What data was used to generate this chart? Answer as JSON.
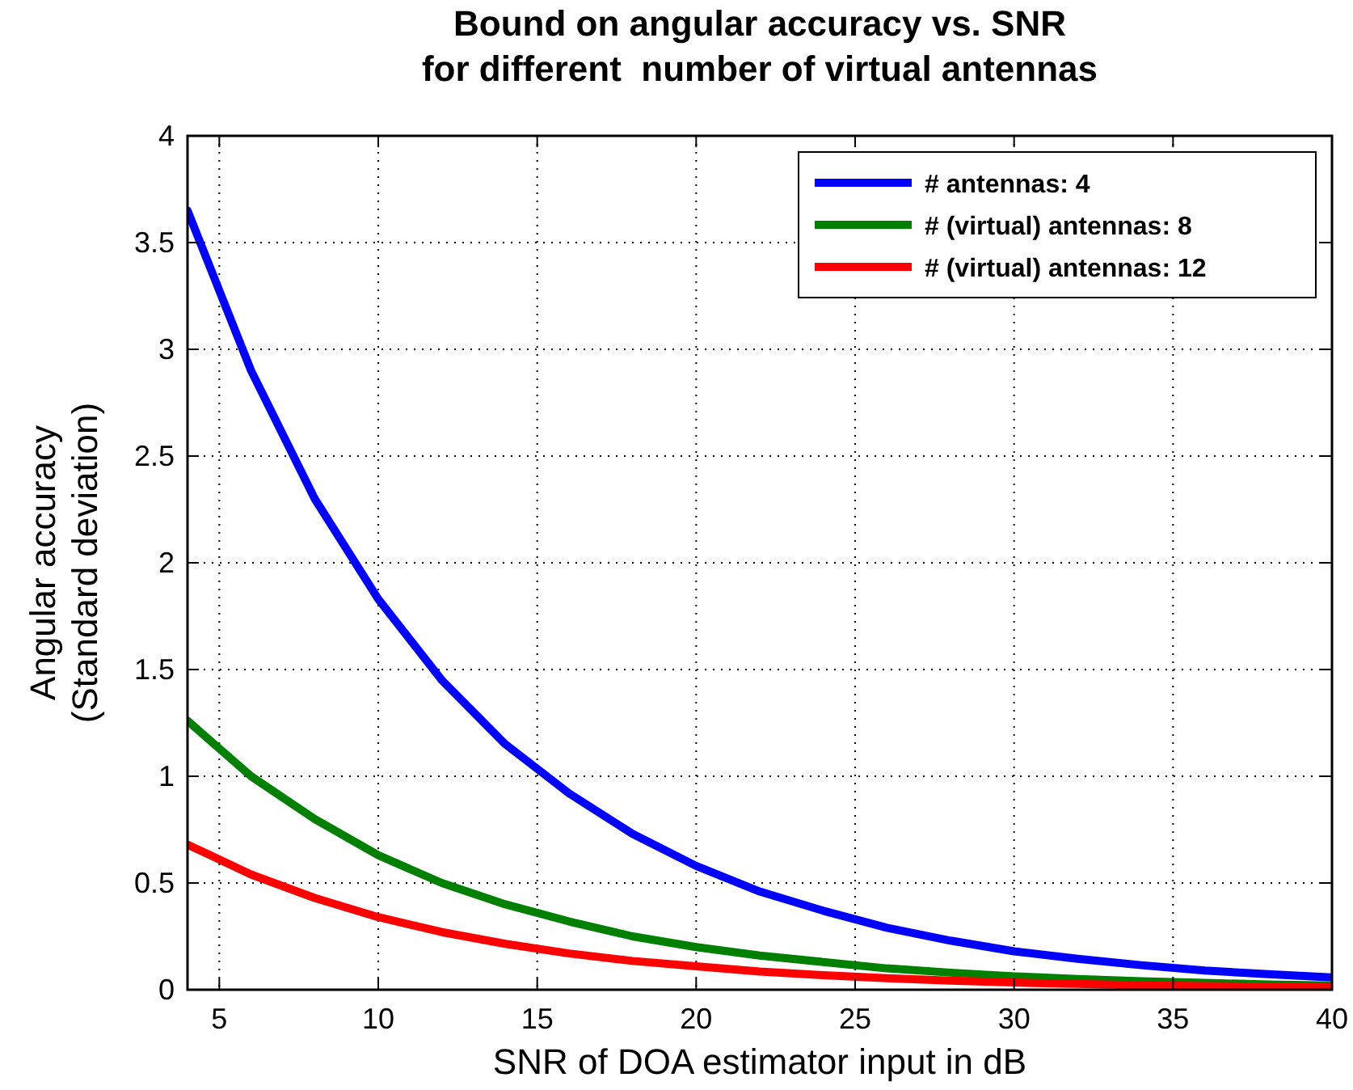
{
  "chart_data": {
    "type": "line",
    "title": "Bound on angular accuracy vs. SNR\nfor different  number of virtual antennas",
    "xlabel": "SNR of DOA estimator input in dB",
    "ylabel": "Angular accuracy\n(Standard deviation)",
    "x": [
      4,
      6,
      8,
      10,
      12,
      14,
      16,
      18,
      20,
      22,
      24,
      26,
      28,
      30,
      32,
      34,
      36,
      38,
      40
    ],
    "series": [
      {
        "name": "# antennas: 4",
        "color": "#0000ff",
        "values": [
          3.65,
          2.9,
          2.3,
          1.83,
          1.45,
          1.15,
          0.92,
          0.73,
          0.58,
          0.46,
          0.37,
          0.29,
          0.23,
          0.18,
          0.145,
          0.115,
          0.09,
          0.073,
          0.058
        ]
      },
      {
        "name": "# (virtual) antennas: 8",
        "color": "#008000",
        "values": [
          1.26,
          1.0,
          0.8,
          0.63,
          0.5,
          0.4,
          0.32,
          0.25,
          0.2,
          0.16,
          0.13,
          0.1,
          0.08,
          0.063,
          0.05,
          0.04,
          0.032,
          0.025,
          0.02
        ]
      },
      {
        "name": "# (virtual) antennas: 12",
        "color": "#ff0000",
        "values": [
          0.68,
          0.54,
          0.43,
          0.34,
          0.27,
          0.215,
          0.17,
          0.135,
          0.11,
          0.085,
          0.068,
          0.054,
          0.043,
          0.034,
          0.027,
          0.021,
          0.017,
          0.014,
          0.011
        ]
      }
    ],
    "xlim": [
      4,
      40
    ],
    "xticks": [
      5,
      10,
      15,
      20,
      25,
      30,
      35,
      40
    ],
    "ylim": [
      0,
      4
    ],
    "yticks": [
      0,
      0.5,
      1,
      1.5,
      2,
      2.5,
      3,
      3.5,
      4
    ],
    "grid": true,
    "legend": "top right",
    "line_style": "solid",
    "marker": "none"
  }
}
